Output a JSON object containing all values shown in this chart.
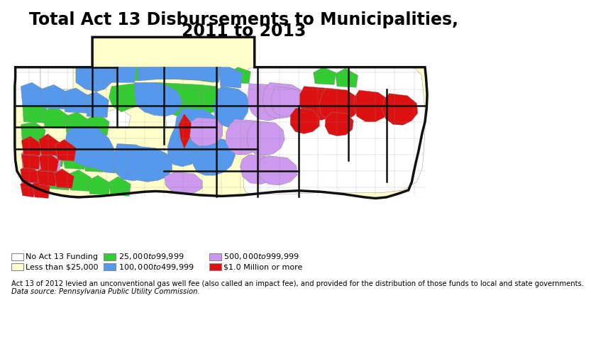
{
  "title_line1": "Total Act 13 Disbursements to Municipalities,",
  "title_line2": "2011 to 2013",
  "title_fontsize": 17,
  "title_fontweight": "bold",
  "background_color": "#ffffff",
  "legend_items": [
    {
      "label": "No Act 13 Funding",
      "color": "#ffffff",
      "edgecolor": "#888888"
    },
    {
      "label": "Less than $25,000",
      "color": "#ffffcc",
      "edgecolor": "#888888"
    },
    {
      "label": "$25,000 to $99,999",
      "color": "#33cc33",
      "edgecolor": "#888888"
    },
    {
      "label": "$100,000 to $499,999",
      "color": "#5599ee",
      "edgecolor": "#888888"
    },
    {
      "label": "$500,000 to $999,999",
      "color": "#cc99ee",
      "edgecolor": "#888888"
    },
    {
      "label": "$1.0 Million or more",
      "color": "#dd1111",
      "edgecolor": "#888888"
    }
  ],
  "footnote_line1": "Act 13 of 2012 levied an unconventional gas well fee (also called an impact fee), and provided for the distribution of those funds to local and state governments.",
  "footnote_line2": "Data source: Pennsylvania Public Utility Commission.",
  "footnote_fontsize": 7.2,
  "map_colors": {
    "no_funding": "#ffffff",
    "less_25k": "#ffffcc",
    "25k_99k": "#33cc33",
    "100k_499k": "#5599ee",
    "500k_999k": "#cc99ee",
    "million_plus": "#dd1111"
  },
  "border_color": "#111111",
  "county_border": "#888888",
  "thick_border": "#111111"
}
